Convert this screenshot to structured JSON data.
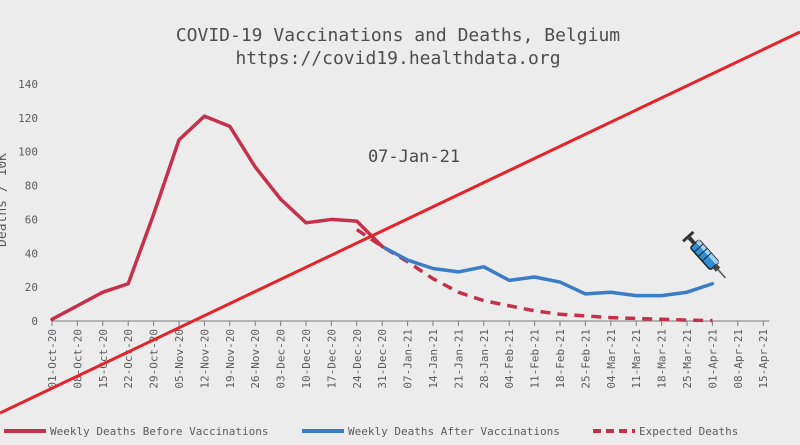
{
  "chart_data": {
    "type": "line",
    "title": "COVID-19 Vaccinations and Deaths, Belgium",
    "subtitle": "https://covid19.healthdata.org",
    "ylabel": "Deaths / 10K",
    "xlabel": "",
    "ylim": [
      0,
      140
    ],
    "yticks": [
      0,
      20,
      40,
      60,
      80,
      100,
      120,
      140
    ],
    "grid": false,
    "legend_position": "bottom",
    "annotation": "07-Jan-21",
    "categories": [
      "01-Oct-20",
      "08-Oct-20",
      "15-Oct-20",
      "22-Oct-20",
      "29-Oct-20",
      "05-Nov-20",
      "12-Nov-20",
      "19-Nov-20",
      "26-Nov-20",
      "03-Dec-20",
      "10-Dec-20",
      "17-Dec-20",
      "24-Dec-20",
      "31-Dec-20",
      "07-Jan-21",
      "14-Jan-21",
      "21-Jan-21",
      "28-Jan-21",
      "04-Feb-21",
      "11-Feb-21",
      "18-Feb-21",
      "25-Feb-21",
      "04-Mar-21",
      "11-Mar-21",
      "18-Mar-21",
      "25-Mar-21",
      "01-Apr-21",
      "08-Apr-21",
      "15-Apr-21"
    ],
    "series": [
      {
        "name": "Weekly Deaths Before Vaccinations",
        "color": "#c4314b",
        "style": "solid",
        "values": [
          1,
          9,
          17,
          22,
          63,
          107,
          121,
          115,
          91,
          72,
          58,
          60,
          59,
          44,
          null,
          null,
          null,
          null,
          null,
          null,
          null,
          null,
          null,
          null,
          null,
          null,
          null,
          null,
          null
        ]
      },
      {
        "name": "Weekly Deaths After Vaccinations",
        "color": "#3a7dc4",
        "style": "solid",
        "values": [
          null,
          null,
          null,
          null,
          null,
          null,
          null,
          null,
          null,
          null,
          null,
          null,
          null,
          44,
          36,
          31,
          29,
          32,
          24,
          26,
          23,
          16,
          17,
          15,
          15,
          17,
          22,
          null,
          null
        ]
      },
      {
        "name": "Expected Deaths",
        "color": "#c4314b",
        "style": "dashed",
        "values": [
          null,
          null,
          null,
          null,
          null,
          null,
          null,
          null,
          null,
          null,
          null,
          null,
          54,
          44,
          35,
          25,
          17,
          12,
          9,
          6,
          4,
          3,
          2,
          1.5,
          1,
          0.5,
          0.3,
          null,
          null
        ]
      }
    ]
  },
  "overlay": {
    "strike_line_color": "#e3242b",
    "syringe_icon": "syringe-icon"
  }
}
